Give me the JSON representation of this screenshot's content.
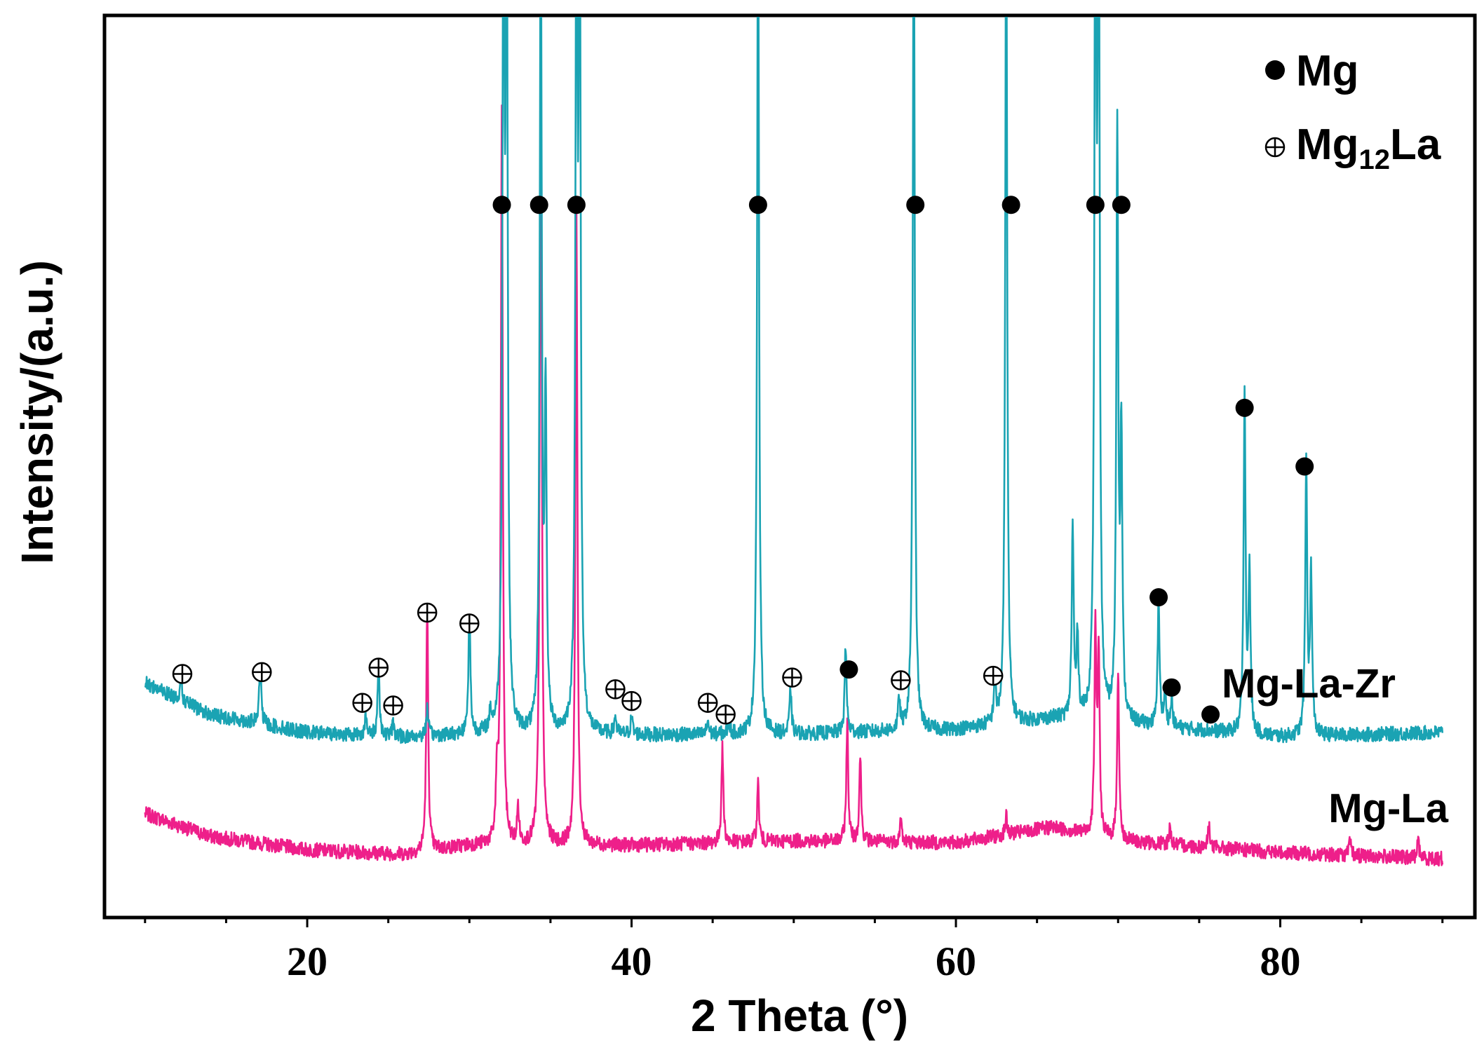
{
  "chart_data": {
    "type": "line",
    "title": "",
    "xlabel": "2 Theta (°)",
    "ylabel": "Intensity/(a.u.)",
    "xlim": [
      7.5,
      92
    ],
    "ylim": [
      0,
      100
    ],
    "xticks": [
      20,
      40,
      60,
      80
    ],
    "xtick_labels": [
      "20",
      "40",
      "60",
      "80"
    ],
    "legend": {
      "position": "top-right",
      "entries": [
        {
          "marker": "filled-circle",
          "label": "Mg"
        },
        {
          "marker": "circle-plus",
          "label": "Mg",
          "subscript": "12",
          "suffix": "La"
        }
      ]
    },
    "series": [
      {
        "name": "Mg-La-Zr",
        "color": "#1aa3b3",
        "baseline": 20.5,
        "x_range": [
          10,
          90
        ],
        "baseline_shape": [
          [
            10,
            26
          ],
          [
            14,
            22.5
          ],
          [
            20,
            20.5
          ],
          [
            26,
            20
          ],
          [
            30,
            20.3
          ],
          [
            40,
            20.2
          ],
          [
            50,
            20.3
          ],
          [
            60,
            20.8
          ],
          [
            66,
            22
          ],
          [
            70,
            21.5
          ],
          [
            80,
            20
          ],
          [
            90,
            20.5
          ]
        ],
        "peaks": [
          [
            12.2,
            2.5
          ],
          [
            17.1,
            7
          ],
          [
            23.6,
            2
          ],
          [
            24.4,
            8
          ],
          [
            25.3,
            1.5
          ],
          [
            27.4,
            3
          ],
          [
            30.0,
            13.5
          ],
          [
            31.3,
            2
          ],
          [
            32.1,
            95
          ],
          [
            32.3,
            95
          ],
          [
            34.4,
            95
          ],
          [
            34.7,
            37
          ],
          [
            36.6,
            95
          ],
          [
            36.8,
            95
          ],
          [
            39.0,
            2
          ],
          [
            40.0,
            2
          ],
          [
            44.7,
            1.5
          ],
          [
            46.0,
            1.5
          ],
          [
            47.8,
            95
          ],
          [
            49.8,
            5
          ],
          [
            53.2,
            9.5
          ],
          [
            56.5,
            3.5
          ],
          [
            57.4,
            95
          ],
          [
            62.4,
            5
          ],
          [
            63.1,
            95
          ],
          [
            67.2,
            21
          ],
          [
            67.5,
            9
          ],
          [
            68.6,
            95
          ],
          [
            68.8,
            95
          ],
          [
            69.95,
            65
          ],
          [
            70.2,
            31
          ],
          [
            72.5,
            14
          ],
          [
            72.9,
            4
          ],
          [
            73.3,
            3
          ],
          [
            77.8,
            37
          ],
          [
            78.1,
            18
          ],
          [
            81.6,
            30
          ],
          [
            81.9,
            18
          ]
        ]
      },
      {
        "name": "Mg-La",
        "color": "#ee1f8a",
        "baseline": 7.5,
        "x_range": [
          10,
          90
        ],
        "baseline_shape": [
          [
            10,
            11.5
          ],
          [
            14,
            9
          ],
          [
            20,
            7.5
          ],
          [
            26,
            7
          ],
          [
            30,
            8
          ],
          [
            40,
            8
          ],
          [
            50,
            8.5
          ],
          [
            60,
            8.3
          ],
          [
            66,
            10
          ],
          [
            70,
            8.5
          ],
          [
            80,
            7.2
          ],
          [
            90,
            6.5
          ]
        ],
        "peaks": [
          [
            27.4,
            27
          ],
          [
            31.7,
            7
          ],
          [
            32.0,
            82
          ],
          [
            33.0,
            4
          ],
          [
            34.4,
            90
          ],
          [
            36.6,
            70
          ],
          [
            45.6,
            10.5
          ],
          [
            47.8,
            6.5
          ],
          [
            53.3,
            13
          ],
          [
            54.1,
            9.5
          ],
          [
            56.6,
            2.5
          ],
          [
            63.1,
            2
          ],
          [
            68.6,
            22
          ],
          [
            68.8,
            20
          ],
          [
            70.0,
            19
          ],
          [
            73.2,
            2
          ],
          [
            75.6,
            2.5
          ],
          [
            84.3,
            1.5
          ],
          [
            88.5,
            2
          ]
        ]
      }
    ],
    "annotations": {
      "Mg_filled_circles": [
        [
          32.0,
          79
        ],
        [
          34.3,
          79
        ],
        [
          36.6,
          79
        ],
        [
          47.8,
          79
        ],
        [
          57.5,
          79
        ],
        [
          63.4,
          79
        ],
        [
          68.6,
          79
        ],
        [
          70.2,
          79
        ],
        [
          77.8,
          56.5
        ],
        [
          81.5,
          50
        ],
        [
          72.5,
          35.5
        ],
        [
          53.4,
          27.5
        ],
        [
          73.3,
          25.5
        ],
        [
          75.7,
          22.5
        ]
      ],
      "Mg12La_circle_plus": [
        [
          12.3,
          27
        ],
        [
          17.2,
          27.2
        ],
        [
          23.4,
          23.8
        ],
        [
          24.4,
          27.7
        ],
        [
          25.3,
          23.5
        ],
        [
          27.4,
          33.8
        ],
        [
          30.0,
          32.6
        ],
        [
          39.0,
          25.3
        ],
        [
          40.0,
          24
        ],
        [
          44.7,
          23.8
        ],
        [
          45.8,
          22.5
        ],
        [
          49.9,
          26.6
        ],
        [
          56.6,
          26.3
        ],
        [
          62.3,
          26.8
        ]
      ]
    }
  },
  "series_labels": {
    "mg_la_zr": "Mg-La-Zr",
    "mg_la": "Mg-La"
  }
}
